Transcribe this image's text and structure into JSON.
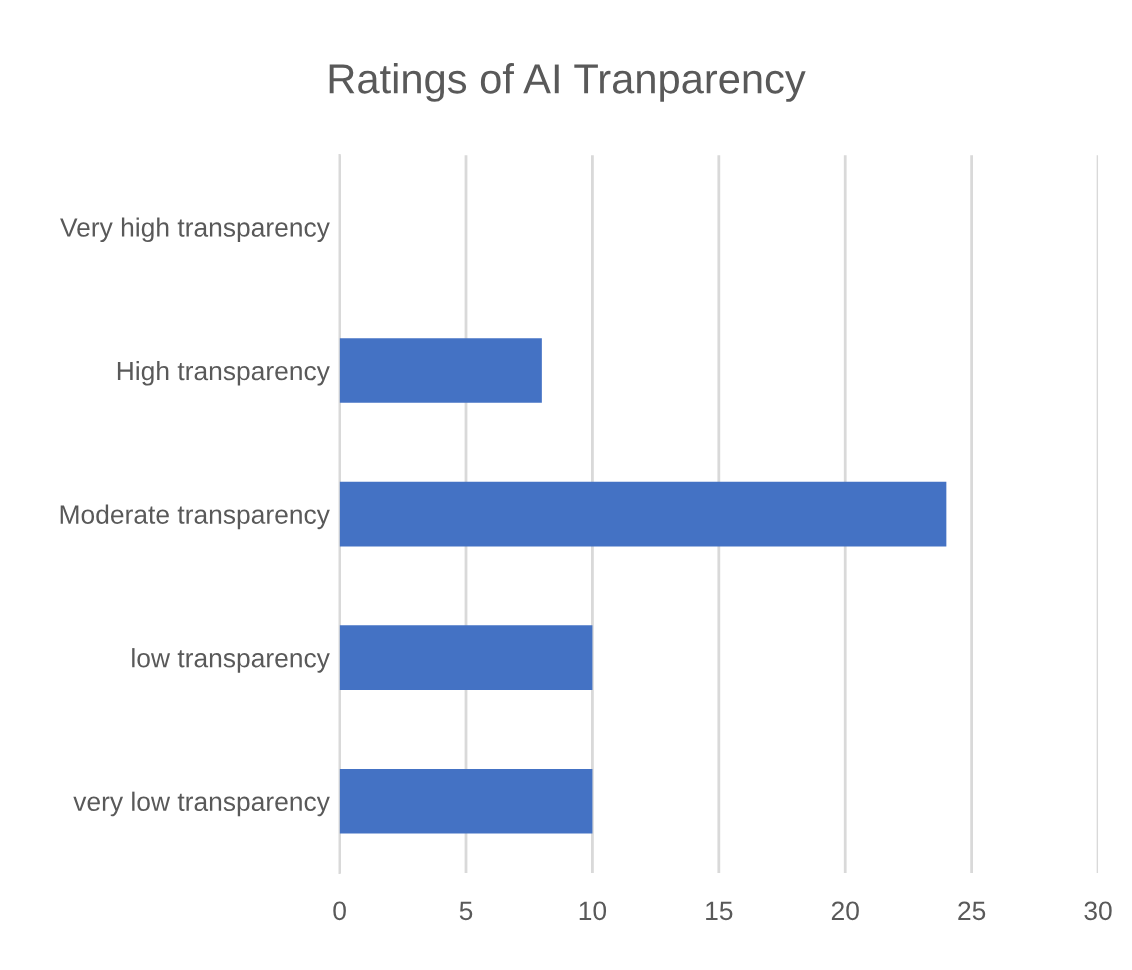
{
  "chart_data": {
    "type": "bar",
    "orientation": "horizontal",
    "title": "Ratings of AI Tranparency",
    "categories": [
      "Very high transparency",
      "High transparency",
      "Moderate transparency",
      "low transparency",
      "very low transparency"
    ],
    "values": [
      0,
      8,
      24,
      10,
      10
    ],
    "color": "#4472c4",
    "xlim": [
      0,
      30
    ],
    "xticks": [
      0,
      5,
      10,
      15,
      20,
      25,
      30
    ],
    "grid": "x"
  }
}
